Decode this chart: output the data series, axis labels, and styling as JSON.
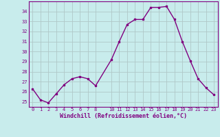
{
  "x": [
    0,
    1,
    2,
    3,
    4,
    5,
    6,
    7,
    8,
    10,
    11,
    12,
    13,
    14,
    15,
    16,
    17,
    18,
    19,
    20,
    21,
    22,
    23
  ],
  "y": [
    26.3,
    25.2,
    24.9,
    25.8,
    26.7,
    27.3,
    27.5,
    27.3,
    26.6,
    29.2,
    31.0,
    32.7,
    33.2,
    33.2,
    34.4,
    34.4,
    34.5,
    33.2,
    31.0,
    29.1,
    27.3,
    26.4,
    25.7
  ],
  "line_color": "#800080",
  "marker": "s",
  "markersize": 2,
  "linewidth": 1,
  "bg_color": "#c8ecec",
  "grid_color": "#b0c8c8",
  "xlabel": "Windchill (Refroidissement éolien,°C)",
  "xlabel_color": "#800080",
  "tick_color": "#800080",
  "ylim": [
    24.5,
    35.0
  ],
  "yticks": [
    25,
    26,
    27,
    28,
    29,
    30,
    31,
    32,
    33,
    34
  ],
  "xticks": [
    0,
    1,
    2,
    3,
    4,
    5,
    6,
    7,
    8,
    10,
    11,
    12,
    13,
    14,
    15,
    16,
    17,
    18,
    19,
    20,
    21,
    22,
    23
  ],
  "font_family": "monospace",
  "spine_color": "#800080"
}
